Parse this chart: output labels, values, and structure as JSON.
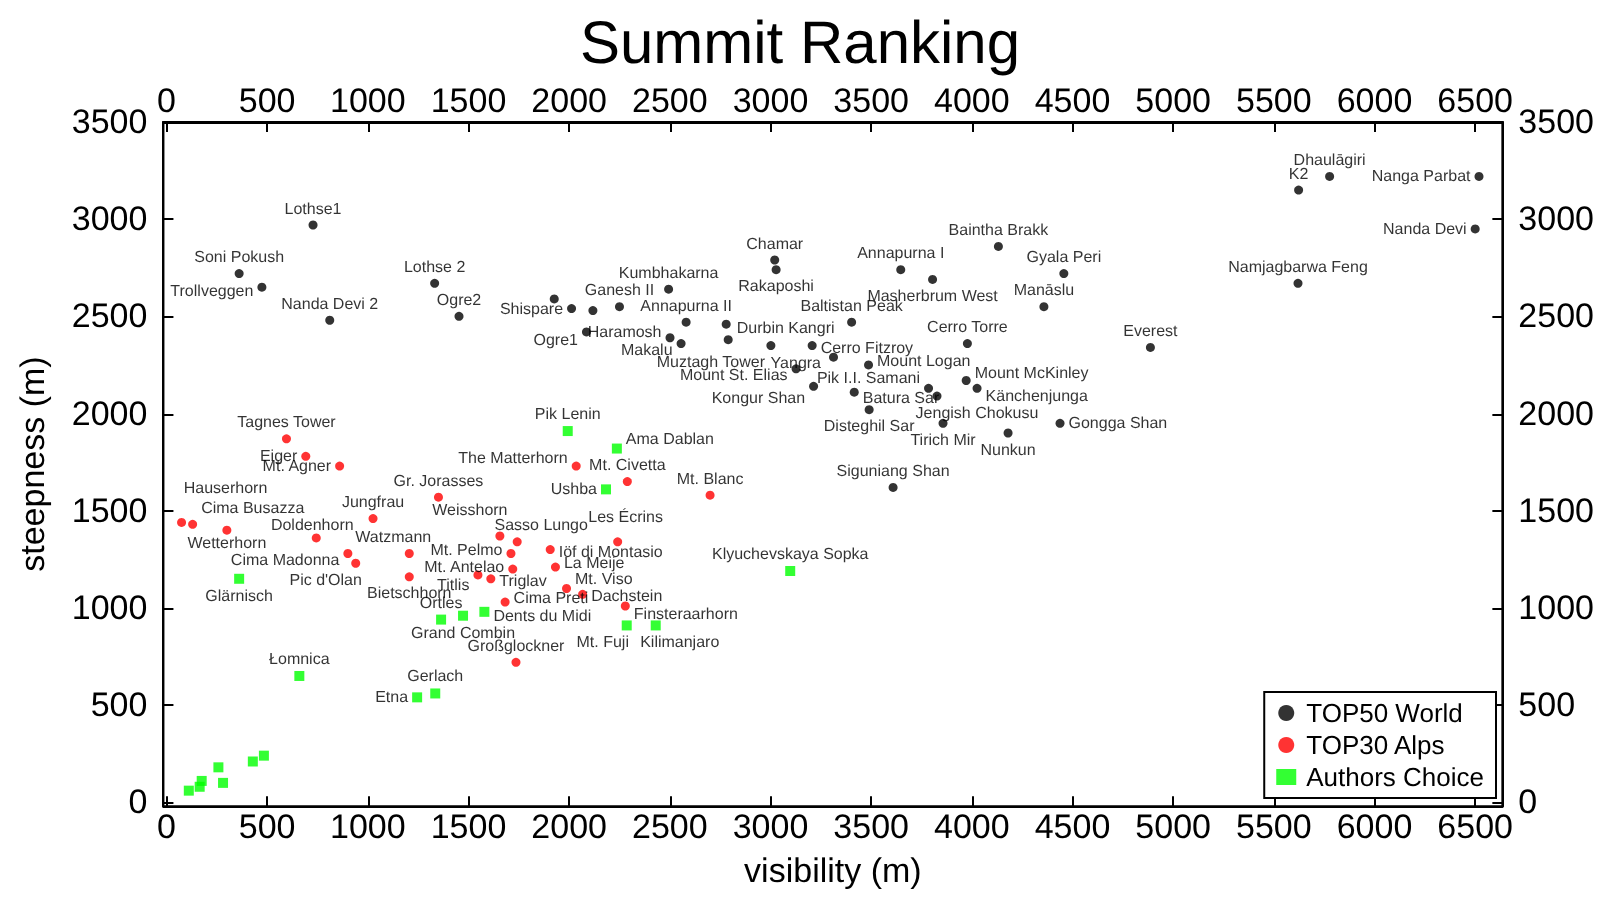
{
  "chart_data": {
    "type": "scatter",
    "title": "Summit Ranking",
    "xlabel": "visibility (m)",
    "ylabel": "steepness (m)",
    "xlim": [
      -15,
      6635
    ],
    "xticks": [
      0,
      500,
      1000,
      1500,
      2000,
      2500,
      3000,
      3500,
      4000,
      4500,
      5000,
      5500,
      6000,
      6500
    ],
    "x2lim": [
      -15,
      6635
    ],
    "x2ticks": [
      0,
      500,
      1000,
      1500,
      2000,
      2500,
      3000,
      3500,
      4000,
      4500,
      5000,
      5500,
      6000,
      6500
    ],
    "ylim": [
      -20,
      3500
    ],
    "yticks": [
      0,
      500,
      1000,
      1500,
      2000,
      2500,
      3000,
      3500
    ],
    "y2lim": [
      -20,
      3500
    ],
    "y2ticks": [
      0,
      500,
      1000,
      1500,
      2000,
      2500,
      3000,
      3500
    ],
    "grid": false,
    "legend": "bottom right",
    "series": [
      {
        "name": "TOP50 World",
        "color": "#000000",
        "marker": "circle",
        "x": [
          728,
          361,
          474,
          811,
          1332,
          1453,
          1926,
          2012,
          2086,
          2118,
          2250,
          2494,
          2501,
          2556,
          2581,
          2780,
          2790,
          3021,
          3028,
          3002,
          3127,
          3207,
          3214,
          3313,
          3403,
          3416,
          3487,
          3490,
          3609,
          3647,
          3785,
          3805,
          3827,
          3857,
          3972,
          3978,
          4026,
          4132,
          4180,
          4358,
          4457,
          4438,
          4887,
          5620,
          5623,
          5777,
          6519,
          6500
        ],
        "values": [
          2970,
          2720,
          2650,
          2480,
          2670,
          2500,
          2590,
          2540,
          2420,
          2530,
          2550,
          2640,
          2390,
          2360,
          2470,
          2460,
          2380,
          2790,
          2740,
          2350,
          2230,
          2350,
          2140,
          2290,
          2470,
          2110,
          2250,
          2020,
          1620,
          2740,
          2130,
          2690,
          2090,
          1950,
          2170,
          2360,
          2130,
          2860,
          1900,
          2550,
          2720,
          1950,
          2340,
          2670,
          3150,
          3220,
          3220,
          2950
        ],
        "value_labels": [
          "Lothse1",
          "Soni Pokush",
          "Trollveggen",
          "Nanda Devi 2",
          "Lothse 2",
          "Ogre2",
          null,
          "Shispare",
          "Ogre1",
          null,
          "Ganesh II",
          "Kumbhakarna",
          "Haramosh",
          "Makalu",
          "Annapurna II",
          null,
          "Durbin Kangri",
          "Chamar",
          "Rakaposhi",
          "Muztagh Tower",
          "Mount St. Elias",
          "Cerro Fitzroy",
          "Kongur Shan",
          "Yangra",
          "Baltistan Peak",
          "Batura Sar",
          "Mount Logan",
          "Disteghil Sar",
          "Siguniang Shan",
          "Annapurna I",
          "Pik I.I. Samani",
          "Masherbrum West",
          "Jengish Chokusu",
          "Tirich Mir",
          "Mount McKinley",
          "Cerro Torre",
          "Känchenjunga",
          "Baintha Brakk",
          "Nunkun",
          "Manāslu",
          "Gyala Peri",
          "Gongga Shan",
          "Everest",
          "Namjagbarwa Feng",
          "K2",
          "Dhaulāgiri",
          "Nanga Parbat",
          "Nanda Devi"
        ]
      },
      {
        "name": "TOP30 Alps",
        "color": "#ff0000",
        "marker": "circle",
        "x": [
          75,
          130,
          300,
          596,
          692,
          744,
          860,
          901,
          940,
          1026,
          1206,
          1206,
          1351,
          1547,
          1611,
          1656,
          1682,
          1711,
          1720,
          1736,
          1742,
          1906,
          1932,
          1987,
          2035,
          2067,
          2241,
          2279,
          2289,
          2700
        ],
        "values": [
          1440,
          1430,
          1400,
          1870,
          1780,
          1360,
          1730,
          1280,
          1230,
          1460,
          1280,
          1160,
          1570,
          1170,
          1150,
          1370,
          1030,
          1280,
          1200,
          720,
          1340,
          1300,
          1210,
          1100,
          1730,
          1070,
          1340,
          1010,
          1650,
          1580
        ],
        "value_labels": [
          "Hauserhorn",
          "Cima Busazza",
          "Wetterhorn",
          "Tagnes Tower",
          "Eiger",
          "Doldenhorn",
          "Mt. Agner",
          "Cima Madonna",
          "Pic d'Olan",
          "Jungfrau",
          "Watzmann",
          "Bietschhorn",
          "Gr. Jorasses",
          "Titlis",
          "Triglav",
          "Weisshorn",
          "Cima Preti",
          "Mt. Pelmo",
          "Mt. Antelao",
          "Großglockner",
          "Sasso Lungo",
          "Iöf di Montasio",
          "La Meije",
          "Mt. Viso",
          "The Matterhorn",
          "Dachstein",
          "Les Écrins",
          "Finsteraarhorn",
          "Mt. Civetta",
          "Mt. Blanc"
        ]
      },
      {
        "name": "Authors Choice",
        "color": "#00ff00",
        "marker": "square",
        "x": [
          111,
          165,
          175,
          258,
          281,
          429,
          484,
          361,
          660,
          1245,
          1335,
          1364,
          1473,
          1579,
          1993,
          2183,
          2237,
          2286,
          2430,
          3098
        ],
        "values": [
          60,
          80,
          110,
          180,
          100,
          210,
          240,
          1150,
          650,
          540,
          560,
          940,
          960,
          980,
          1910,
          1610,
          1820,
          910,
          910,
          1190
        ],
        "value_labels": [
          null,
          null,
          null,
          null,
          null,
          null,
          null,
          "Glärnisch",
          "Łomnica",
          "Etna",
          "Gerlach",
          "Ortles",
          "Grand Combin",
          "Dents du Midi",
          "Pik Lenin",
          "Ushba",
          "Ama Dablan",
          "Mt. Fuji",
          "Kilimanjaro",
          "Klyuchevskaya Sopka"
        ]
      }
    ]
  }
}
